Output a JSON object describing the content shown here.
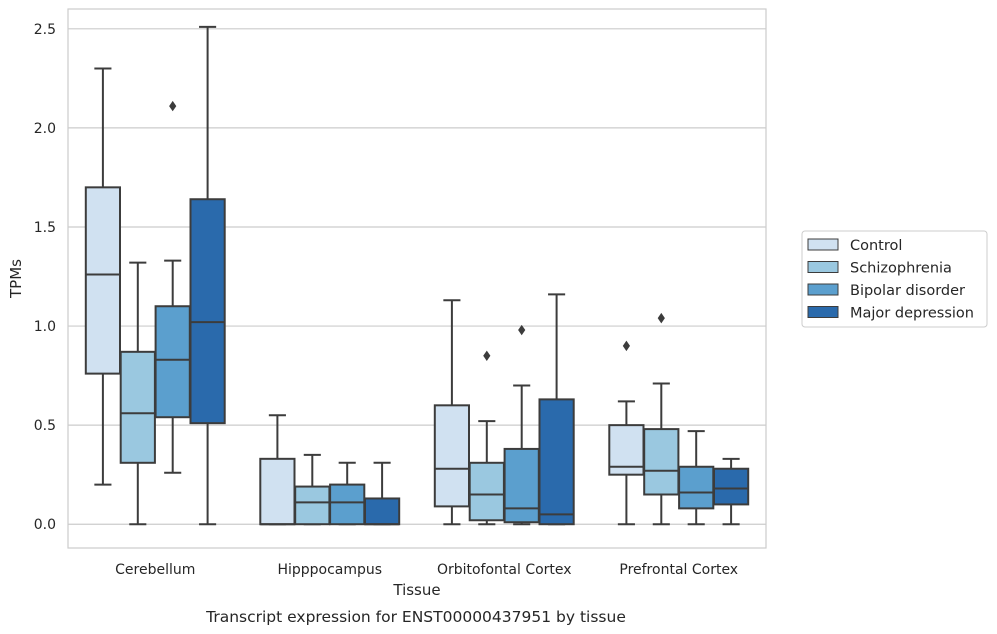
{
  "caption": "Transcript expression for ENST00000437951 by tissue",
  "chart_data": {
    "type": "boxplot",
    "xlabel": "Tissue",
    "ylabel": "TPMs",
    "ylim": [
      -0.12,
      2.6
    ],
    "yticks": [
      0.0,
      0.5,
      1.0,
      1.5,
      2.0,
      2.5
    ],
    "ytick_labels": [
      "0.0",
      "0.5",
      "1.0",
      "1.5",
      "2.0",
      "2.5"
    ],
    "grid": "horizontal",
    "legend_position": "right",
    "categories": [
      "Cerebellum",
      "Hipppocampus",
      "Orbitofontal Cortex",
      "Prefrontal Cortex"
    ],
    "series": [
      {
        "name": "Control",
        "color": "#d0e1f1",
        "boxes": [
          {
            "whislo": 0.2,
            "q1": 0.76,
            "med": 1.26,
            "q3": 1.7,
            "whishi": 2.3,
            "fliers": []
          },
          {
            "whislo": 0.0,
            "q1": 0.0,
            "med": 0.0,
            "q3": 0.33,
            "whishi": 0.55,
            "fliers": []
          },
          {
            "whislo": 0.0,
            "q1": 0.09,
            "med": 0.28,
            "q3": 0.6,
            "whishi": 1.13,
            "fliers": []
          },
          {
            "whislo": 0.0,
            "q1": 0.25,
            "med": 0.29,
            "q3": 0.5,
            "whishi": 0.62,
            "fliers": [
              0.9
            ]
          }
        ]
      },
      {
        "name": "Schizophrenia",
        "color": "#9ac8e0",
        "boxes": [
          {
            "whislo": 0.0,
            "q1": 0.31,
            "med": 0.56,
            "q3": 0.87,
            "whishi": 1.32,
            "fliers": []
          },
          {
            "whislo": 0.0,
            "q1": 0.0,
            "med": 0.11,
            "q3": 0.19,
            "whishi": 0.35,
            "fliers": []
          },
          {
            "whislo": 0.0,
            "q1": 0.02,
            "med": 0.15,
            "q3": 0.31,
            "whishi": 0.52,
            "fliers": [
              0.85
            ]
          },
          {
            "whislo": 0.0,
            "q1": 0.15,
            "med": 0.27,
            "q3": 0.48,
            "whishi": 0.71,
            "fliers": [
              1.04
            ]
          }
        ]
      },
      {
        "name": "Bipolar disorder",
        "color": "#5b9fce",
        "boxes": [
          {
            "whislo": 0.26,
            "q1": 0.54,
            "med": 0.83,
            "q3": 1.1,
            "whishi": 1.33,
            "fliers": [
              2.11
            ]
          },
          {
            "whislo": 0.0,
            "q1": 0.0,
            "med": 0.11,
            "q3": 0.2,
            "whishi": 0.31,
            "fliers": []
          },
          {
            "whislo": 0.0,
            "q1": 0.01,
            "med": 0.08,
            "q3": 0.38,
            "whishi": 0.7,
            "fliers": [
              0.98
            ]
          },
          {
            "whislo": 0.0,
            "q1": 0.08,
            "med": 0.16,
            "q3": 0.29,
            "whishi": 0.47,
            "fliers": []
          }
        ]
      },
      {
        "name": "Major depression",
        "color": "#2a6aac",
        "boxes": [
          {
            "whislo": 0.0,
            "q1": 0.51,
            "med": 1.02,
            "q3": 1.64,
            "whishi": 2.51,
            "fliers": []
          },
          {
            "whislo": 0.0,
            "q1": 0.0,
            "med": 0.0,
            "q3": 0.13,
            "whishi": 0.31,
            "fliers": []
          },
          {
            "whislo": 0.0,
            "q1": 0.0,
            "med": 0.05,
            "q3": 0.63,
            "whishi": 1.16,
            "fliers": []
          },
          {
            "whislo": 0.0,
            "q1": 0.1,
            "med": 0.18,
            "q3": 0.28,
            "whishi": 0.33,
            "fliers": []
          }
        ]
      }
    ]
  }
}
